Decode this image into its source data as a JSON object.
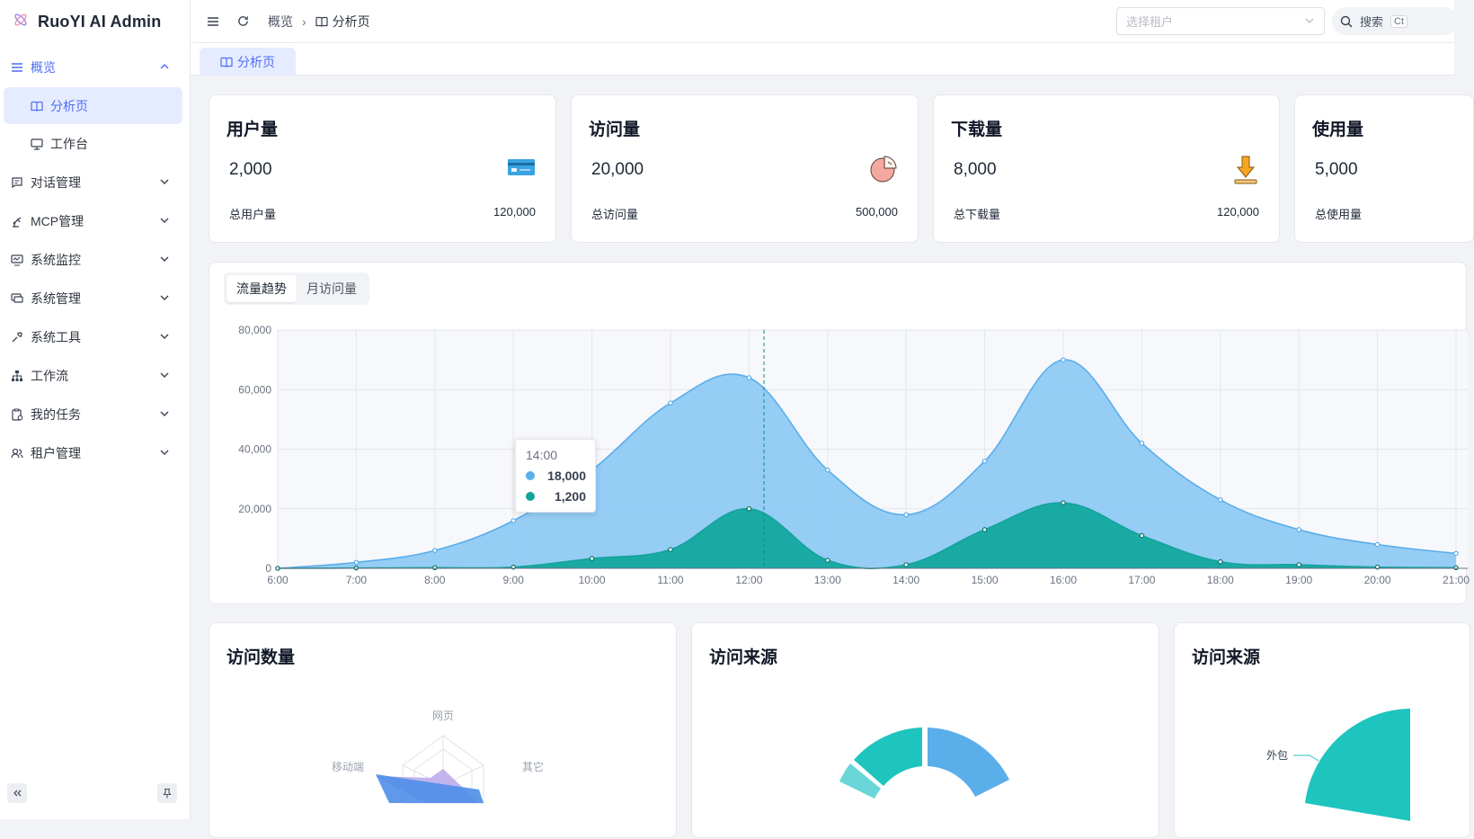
{
  "app": {
    "title": "RuoYI AI Admin"
  },
  "sidebar": {
    "items": [
      {
        "label": "概览",
        "icon": "menu-icon",
        "open": true
      },
      {
        "label": "对话管理",
        "icon": "chat-icon"
      },
      {
        "label": "MCP管理",
        "icon": "robot-arm-icon"
      },
      {
        "label": "系统监控",
        "icon": "monitor-icon"
      },
      {
        "label": "系统管理",
        "icon": "desktop-icon"
      },
      {
        "label": "系统工具",
        "icon": "wrench-icon"
      },
      {
        "label": "工作流",
        "icon": "sitemap-icon"
      },
      {
        "label": "我的任务",
        "icon": "clipboard-icon"
      },
      {
        "label": "租户管理",
        "icon": "users-icon"
      }
    ],
    "sub_items": [
      {
        "label": "分析页",
        "icon": "book-icon",
        "active": true
      },
      {
        "label": "工作台",
        "icon": "monitor-icon"
      }
    ]
  },
  "header": {
    "breadcrumb": [
      "概览",
      "分析页"
    ],
    "tenant_placeholder": "选择租户",
    "search_label": "搜索",
    "search_kbd": "Ct"
  },
  "tabs": [
    {
      "label": "分析页"
    }
  ],
  "stats": [
    {
      "title": "用户量",
      "value": "2,000",
      "foot_label": "总用户量",
      "foot_value": "120,000",
      "icon": "credit-card-icon"
    },
    {
      "title": "访问量",
      "value": "20,000",
      "foot_label": "总访问量",
      "foot_value": "500,000",
      "icon": "pie-chart-icon"
    },
    {
      "title": "下载量",
      "value": "8,000",
      "foot_label": "总下载量",
      "foot_value": "120,000",
      "icon": "download-icon"
    },
    {
      "title": "使用量",
      "value": "5,000",
      "foot_label": "总使用量",
      "foot_value": "",
      "icon": "usage-icon"
    }
  ],
  "trend": {
    "tabs": [
      "流量趋势",
      "月访问量"
    ],
    "active_tab": 0,
    "tooltip": {
      "title": "14:00",
      "values": [
        "18,000",
        "1,200"
      ]
    }
  },
  "colors": {
    "accent": "#4f6ef7",
    "series1": "#5aaeea",
    "series2": "#14a39b"
  },
  "chart_data": {
    "type": "area",
    "x": [
      "6:00",
      "7:00",
      "8:00",
      "9:00",
      "10:00",
      "11:00",
      "12:00",
      "13:00",
      "14:00",
      "15:00",
      "16:00",
      "17:00",
      "18:00",
      "19:00",
      "20:00",
      "21:00"
    ],
    "series": [
      {
        "values": [
          0,
          2000,
          6000,
          16000,
          33000,
          55500,
          64000,
          33000,
          18000,
          36000,
          70000,
          42000,
          23000,
          13000,
          8000,
          5000
        ]
      },
      {
        "values": [
          0,
          100,
          200,
          400,
          3300,
          6300,
          20000,
          2700,
          1200,
          13000,
          22000,
          11000,
          2200,
          1200,
          400,
          200
        ]
      }
    ],
    "ylim": [
      0,
      80000
    ],
    "yticks": [
      "0",
      "20,000",
      "40,000",
      "60,000",
      "80,000"
    ],
    "grid": true
  },
  "panels": [
    {
      "title": "访问数量",
      "radar_labels": [
        "网页",
        "移动端",
        "其它"
      ]
    },
    {
      "title": "访问来源"
    },
    {
      "title": "访问来源",
      "pie_labels": [
        "外包"
      ]
    }
  ]
}
